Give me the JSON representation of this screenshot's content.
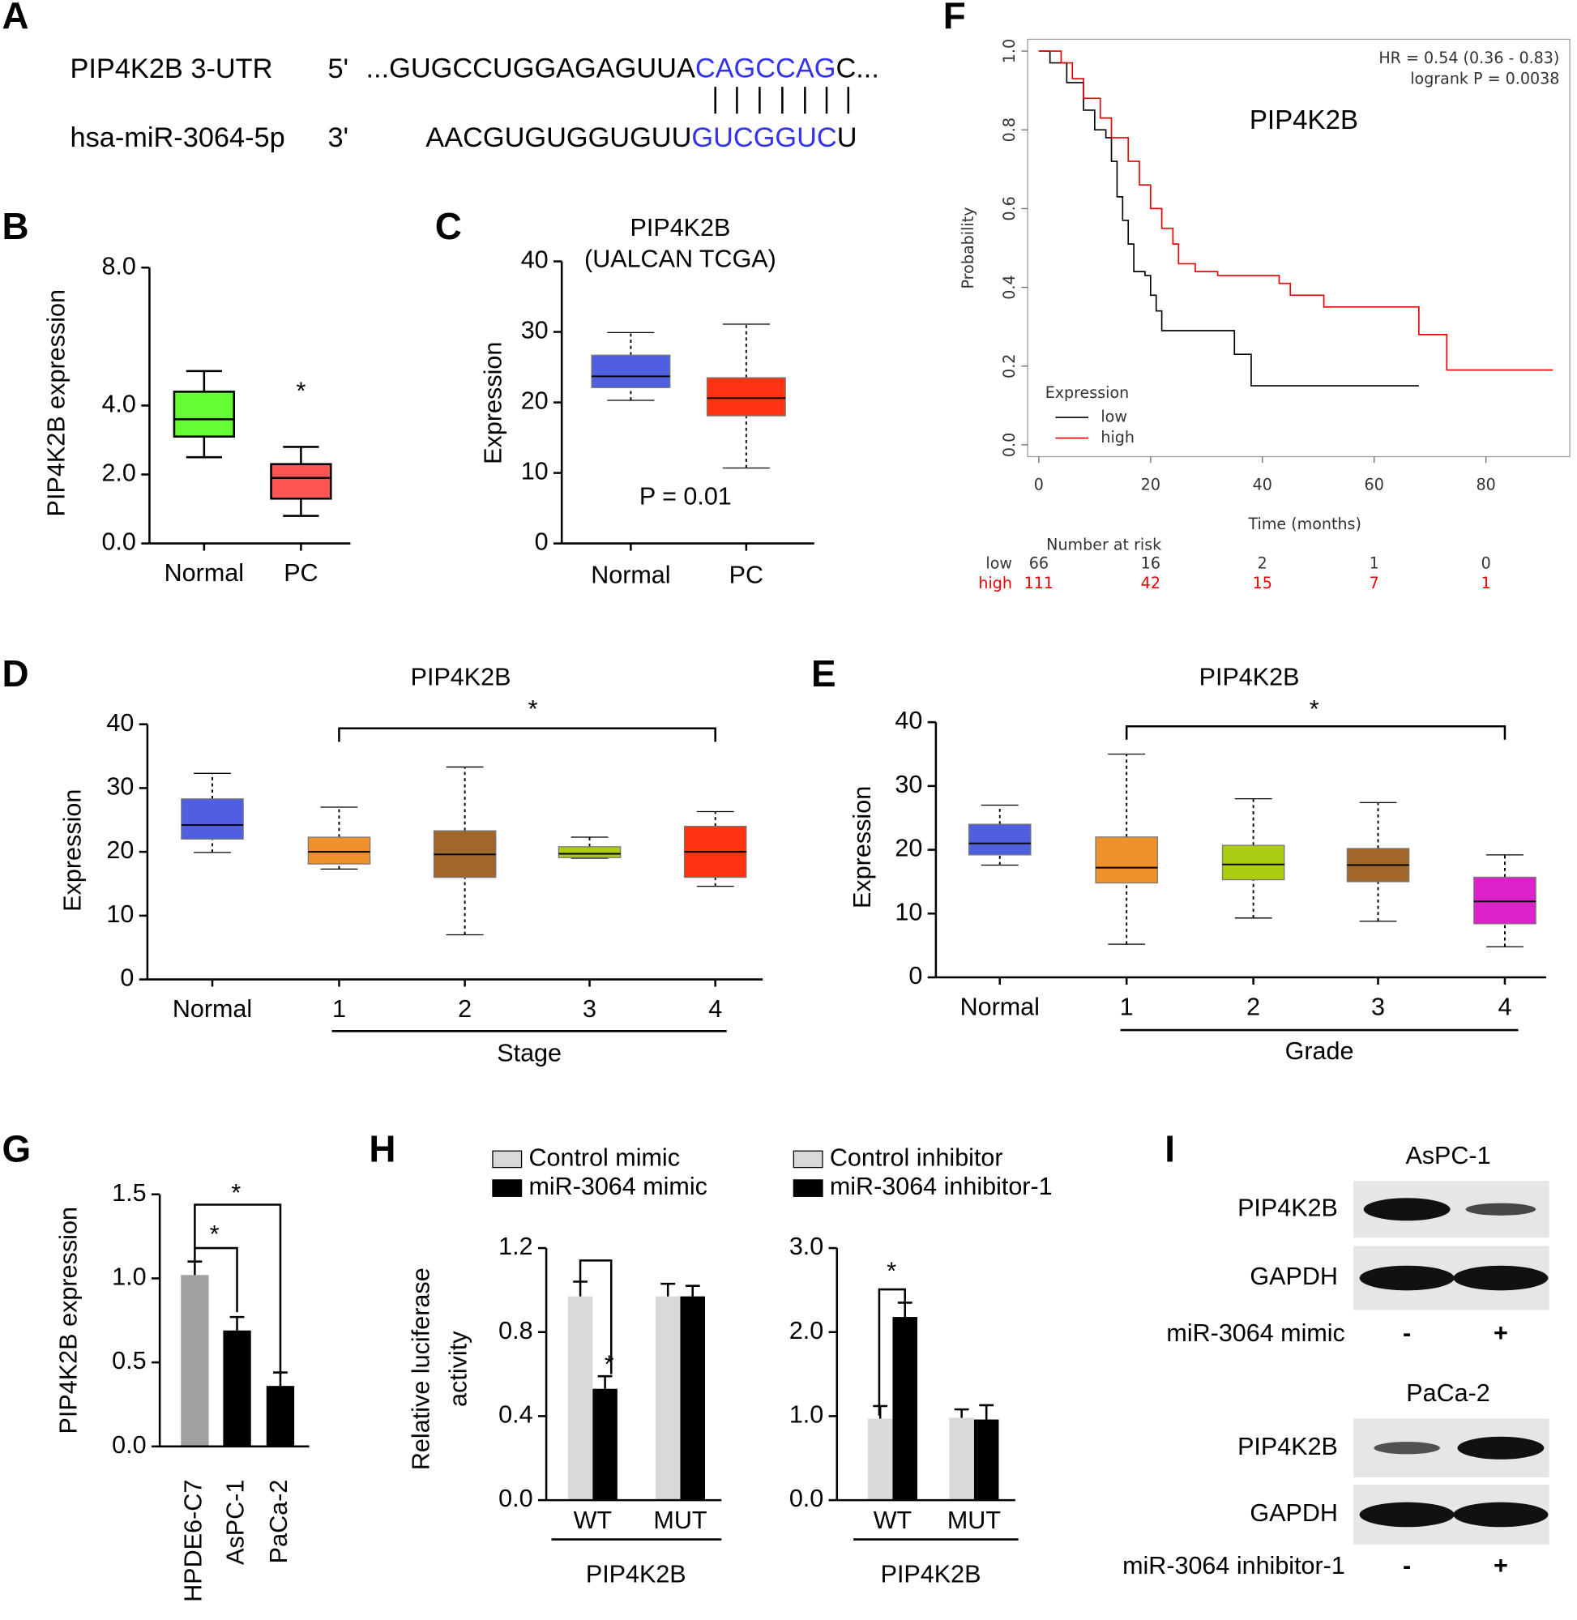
{
  "panel_labels": [
    "A",
    "B",
    "C",
    "D",
    "E",
    "F",
    "G",
    "H",
    "I"
  ],
  "sequence": {
    "seed_color": "#3333ee",
    "rows": [
      {
        "name": "PIP4K2B 3-UTR",
        "end": "5'",
        "parts": [
          "...GUGCCUGGAGAGUUA",
          "CAGCCAG",
          "C..."
        ]
      },
      {
        "name": "hsa-miR-3064-5p",
        "end": "3'",
        "parts": [
          "AACGUGUGGUGUU",
          "GUCGGUC",
          "U"
        ]
      }
    ]
  },
  "chart_data": [
    {
      "type": "box",
      "ylabel": "PIP4K2B expression",
      "categories": [
        "Normal",
        "PC"
      ],
      "boxes": [
        {
          "min": 2.5,
          "q1": 3.1,
          "median": 3.6,
          "q3": 4.4,
          "max": 5.0,
          "color": "#66ff33"
        },
        {
          "min": 0.8,
          "q1": 1.3,
          "median": 1.9,
          "q3": 2.3,
          "max": 2.8,
          "color": "#ff5555"
        }
      ],
      "ylim": [
        0,
        8
      ],
      "yticks": [
        {
          "value": 0,
          "label": "0.0"
        },
        {
          "value": 2,
          "label": "2.0"
        },
        {
          "value": 4,
          "label": "4.0"
        },
        {
          "value": 8,
          "label": "8.0"
        }
      ],
      "annotations": [
        "*"
      ]
    },
    {
      "type": "box",
      "title": "PIP4K2B",
      "subtitle": "(UALCAN TCGA)",
      "ylabel": "Expression",
      "categories": [
        "Normal",
        "PC"
      ],
      "boxes": [
        {
          "min": 20.3,
          "q1": 22.1,
          "median": 23.7,
          "q3": 26.7,
          "max": 29.9,
          "color": "#4f5fe0"
        },
        {
          "min": 10.7,
          "q1": 18.1,
          "median": 20.6,
          "q3": 23.5,
          "max": 31.1,
          "color": "#ff3311"
        }
      ],
      "ylim": [
        0,
        40
      ],
      "yticks": [
        0,
        10,
        20,
        30,
        40
      ],
      "annotations": [
        "P = 0.01"
      ]
    },
    {
      "type": "box",
      "title": "PIP4K2B",
      "ylabel": "Expression",
      "xlabel": "Stage",
      "categories": [
        "Normal",
        "1",
        "2",
        "3",
        "4"
      ],
      "boxes": [
        {
          "min": 19.9,
          "q1": 22.0,
          "median": 24.2,
          "q3": 28.3,
          "max": 32.3,
          "color": "#4f5fe0"
        },
        {
          "min": 17.3,
          "q1": 18.1,
          "median": 20.0,
          "q3": 22.3,
          "max": 27.0,
          "color": "#f0922b"
        },
        {
          "min": 7.0,
          "q1": 16.0,
          "median": 19.6,
          "q3": 23.3,
          "max": 33.3,
          "color": "#a0662a"
        },
        {
          "min": 19.0,
          "q1": 19.1,
          "median": 19.7,
          "q3": 20.8,
          "max": 22.3,
          "color": "#aacc11"
        },
        {
          "min": 14.6,
          "q1": 16.0,
          "median": 20.0,
          "q3": 24.0,
          "max": 26.3,
          "color": "#ff3311"
        }
      ],
      "ylim": [
        0,
        40
      ],
      "yticks": [
        0,
        10,
        20,
        30,
        40
      ],
      "annotations": [
        "*"
      ]
    },
    {
      "type": "box",
      "title": "PIP4K2B",
      "ylabel": "Expression",
      "xlabel": "Grade",
      "categories": [
        "Normal",
        "1",
        "2",
        "3",
        "4"
      ],
      "boxes": [
        {
          "min": 17.6,
          "q1": 19.2,
          "median": 21.0,
          "q3": 24.0,
          "max": 27.0,
          "color": "#4f5fe0"
        },
        {
          "min": 5.2,
          "q1": 14.8,
          "median": 17.2,
          "q3": 22.0,
          "max": 35.0,
          "color": "#f0922b"
        },
        {
          "min": 9.3,
          "q1": 15.3,
          "median": 17.7,
          "q3": 20.7,
          "max": 28.0,
          "color": "#aacc11"
        },
        {
          "min": 8.8,
          "q1": 15.0,
          "median": 17.6,
          "q3": 20.2,
          "max": 27.4,
          "color": "#a0662a"
        },
        {
          "min": 4.8,
          "q1": 8.4,
          "median": 11.9,
          "q3": 15.7,
          "max": 19.2,
          "color": "#dd22cc"
        }
      ],
      "ylim": [
        0,
        40
      ],
      "yticks": [
        0,
        10,
        20,
        30,
        40
      ],
      "annotations": [
        "*"
      ]
    },
    {
      "type": "step",
      "title": "PIP4K2B",
      "xlabel": "Time (months)",
      "ylabel": "Probability",
      "annotations": [
        "HR = 0.54 (0.36 - 0.83)",
        "logrank P = 0.0038"
      ],
      "legend_title": "Expression",
      "series": [
        {
          "name": "low",
          "color": "#000000",
          "x": [
            0,
            2,
            5,
            8,
            10,
            12,
            13,
            14,
            15,
            16,
            17,
            19,
            20,
            21,
            22,
            35,
            38,
            68
          ],
          "values": [
            1.0,
            0.97,
            0.92,
            0.85,
            0.8,
            0.78,
            0.72,
            0.63,
            0.57,
            0.51,
            0.44,
            0.43,
            0.38,
            0.34,
            0.29,
            0.23,
            0.15,
            0.15
          ]
        },
        {
          "name": "high",
          "color": "#ee0000",
          "x": [
            0,
            4,
            6,
            8,
            11,
            13,
            16,
            18,
            20,
            22,
            24,
            25,
            28,
            32,
            43,
            45,
            51,
            68,
            73,
            92
          ],
          "values": [
            1.0,
            0.97,
            0.93,
            0.88,
            0.83,
            0.78,
            0.72,
            0.66,
            0.6,
            0.55,
            0.51,
            0.46,
            0.44,
            0.43,
            0.41,
            0.38,
            0.35,
            0.28,
            0.19,
            0.19
          ]
        }
      ],
      "xlim": [
        -2,
        95
      ],
      "xticks": [
        0,
        20,
        40,
        60,
        80
      ],
      "ylim": [
        -0.03,
        1.03
      ],
      "yticks": [
        {
          "value": 0,
          "label": "0.0"
        },
        0.2,
        0.4,
        0.6,
        0.8,
        {
          "value": 1,
          "label": "1.0"
        }
      ],
      "risk_table": {
        "title": "Number at risk",
        "rows": [
          {
            "name": "low",
            "color": "#333333",
            "values": [
              66,
              16,
              2,
              1,
              0
            ]
          },
          {
            "name": "high",
            "color": "#ee0000",
            "values": [
              111,
              42,
              15,
              7,
              1
            ]
          }
        ]
      }
    },
    {
      "type": "bar",
      "ylabel": "PIP4K2B expression",
      "categories": [
        "HPDE6-C7",
        "AsPC-1",
        "PaCa-2"
      ],
      "values": [
        1.02,
        0.69,
        0.36
      ],
      "errors": [
        0.08,
        0.08,
        0.08
      ],
      "colors": [
        "#a0a0a0",
        "#000000",
        "#000000"
      ],
      "ylim": [
        0,
        1.5
      ],
      "yticks": [
        {
          "value": 0,
          "label": "0.0"
        },
        0.5,
        {
          "value": 1,
          "label": "1.0"
        },
        1.5
      ],
      "annotations": [
        "*",
        "*"
      ]
    },
    {
      "type": "grouped_bar",
      "ylabel": [
        "Relative luciferase",
        "activity"
      ],
      "xlabel": "PIP4K2B",
      "categories": [
        "WT",
        "MUT"
      ],
      "series": [
        {
          "name": "Control mimic",
          "color": "#d9d9d9",
          "values": [
            0.97,
            0.97
          ],
          "errors": [
            0.07,
            0.06
          ]
        },
        {
          "name": "miR-3064 mimic",
          "color": "#000000",
          "values": [
            0.53,
            0.97
          ],
          "errors": [
            0.06,
            0.05
          ]
        }
      ],
      "ylim": [
        0,
        1.2
      ],
      "yticks": [
        {
          "value": 0,
          "label": "0.0"
        },
        0.4,
        0.8,
        1.2
      ],
      "annotations": [
        "*"
      ]
    },
    {
      "type": "grouped_bar",
      "xlabel": "PIP4K2B",
      "categories": [
        "WT",
        "MUT"
      ],
      "series": [
        {
          "name": "Control inhibitor",
          "color": "#d9d9d9",
          "values": [
            0.97,
            0.98
          ],
          "errors": [
            0.15,
            0.1
          ]
        },
        {
          "name": "miR-3064 inhibitor-1",
          "color": "#000000",
          "values": [
            2.18,
            0.96
          ],
          "errors": [
            0.17,
            0.17
          ]
        }
      ],
      "ylim": [
        0,
        3
      ],
      "yticks": [
        {
          "value": 0,
          "label": "0.0"
        },
        {
          "value": 1,
          "label": "1.0"
        },
        {
          "value": 2,
          "label": "2.0"
        },
        {
          "value": 3,
          "label": "3.0"
        }
      ],
      "annotations": [
        "*"
      ]
    }
  ],
  "blots": {
    "panels": [
      {
        "cell_line": "AsPC-1",
        "rows": [
          "PIP4K2B",
          "GAPDH"
        ],
        "treatment": "miR-3064 mimic",
        "lanes": [
          "-",
          "+"
        ]
      },
      {
        "cell_line": "PaCa-2",
        "rows": [
          "PIP4K2B",
          "GAPDH"
        ],
        "treatment": "miR-3064 inhibitor-1",
        "lanes": [
          "-",
          "+"
        ]
      }
    ]
  }
}
